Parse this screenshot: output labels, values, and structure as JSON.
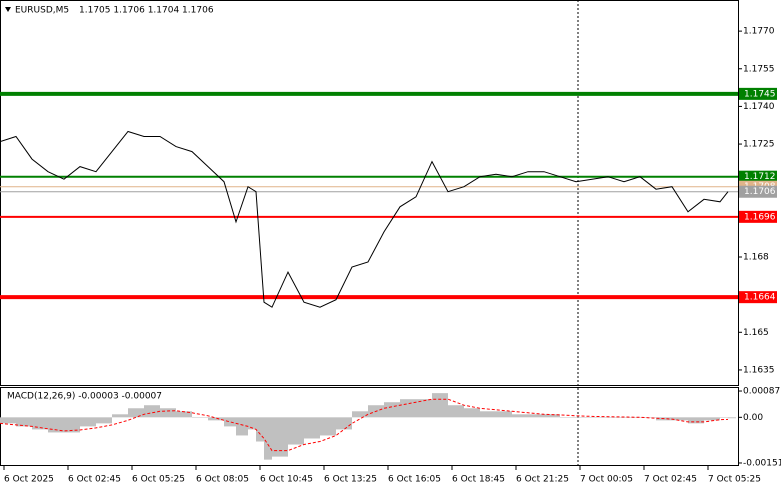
{
  "chart_data": [
    {
      "type": "line",
      "title": "EURUSD,M5",
      "subtitle": "1.1705 1.1706 1.1704 1.1706",
      "x": [
        0,
        8,
        16,
        24,
        32,
        40,
        48,
        56,
        64,
        72,
        80,
        88,
        96,
        104,
        112,
        118,
        124,
        128,
        132,
        136,
        144,
        152,
        160,
        168,
        176,
        184,
        192,
        200,
        208,
        216,
        224,
        232,
        240,
        248,
        256,
        264,
        272,
        280,
        288,
        296,
        304,
        312,
        320,
        328,
        336,
        344,
        352,
        360,
        364
      ],
      "values": [
        1.1726,
        1.1728,
        1.1719,
        1.1714,
        1.1711,
        1.1716,
        1.1714,
        1.1722,
        1.173,
        1.1728,
        1.1728,
        1.1724,
        1.1722,
        1.1716,
        1.171,
        1.1694,
        1.1708,
        1.1706,
        1.1662,
        1.166,
        1.1674,
        1.1662,
        1.166,
        1.1663,
        1.1676,
        1.1678,
        1.169,
        1.17,
        1.1704,
        1.1718,
        1.1706,
        1.1708,
        1.1712,
        1.1713,
        1.1712,
        1.1714,
        1.1714,
        1.1712,
        1.171,
        1.1711,
        1.1712,
        1.171,
        1.1712,
        1.1707,
        1.1708,
        1.1698,
        1.1703,
        1.1702,
        1.1706
      ],
      "color": "#000000",
      "xlim": [
        0,
        369
      ],
      "xticks": [
        {
          "value": 2,
          "label": "6 Oct 2025"
        },
        {
          "value": 34,
          "label": "6 Oct 02:45"
        },
        {
          "value": 66,
          "label": "6 Oct 05:25"
        },
        {
          "value": 98,
          "label": "6 Oct 08:05"
        },
        {
          "value": 130,
          "label": "6 Oct 10:45"
        },
        {
          "value": 162,
          "label": "6 Oct 13:25"
        },
        {
          "value": 194,
          "label": "6 Oct 16:05"
        },
        {
          "value": 226,
          "label": "6 Oct 18:45"
        },
        {
          "value": 258,
          "label": "6 Oct 21:25"
        },
        {
          "value": 290,
          "label": "7 Oct 00:05"
        },
        {
          "value": 322,
          "label": "7 Oct 02:45"
        },
        {
          "value": 354,
          "label": "7 Oct 05:25"
        }
      ],
      "day_separator": 289,
      "ylim": [
        1.1629,
        1.17824
      ],
      "yticks": [
        1.1635,
        1.165,
        1.168,
        {
          "value": 1.1725,
          "label": "1.1725"
        },
        {
          "value": 1.174,
          "label": "1.1740"
        },
        1.1755,
        {
          "value": 1.177,
          "label": "1.1770"
        }
      ],
      "grid": false,
      "levels": [
        {
          "value": 1.1745,
          "color": "#008000",
          "style": "thick"
        },
        {
          "value": 1.1712,
          "color": "#008000",
          "style": "medium"
        },
        {
          "value": 1.1708,
          "color": "#e0b48a",
          "style": "thin"
        },
        {
          "value": 1.1706,
          "color": "#a0a0a0",
          "style": "thin"
        },
        {
          "value": 1.1696,
          "color": "#ff0000",
          "style": "medium"
        },
        {
          "value": 1.1664,
          "color": "#ff0000",
          "style": "thick"
        }
      ]
    },
    {
      "type": "macd",
      "title": "MACD(12,26,9) -0.00003 -0.00007",
      "histogram": [
        -0.0002,
        -0.0003,
        -0.0004,
        -0.0005,
        -0.0005,
        -0.0003,
        -0.0002,
        0.0001,
        0.0003,
        0.0004,
        0.0003,
        0.0002,
        0.0,
        -0.0001,
        -0.0003,
        -0.0006,
        -0.0004,
        -0.0008,
        -0.0014,
        -0.0013,
        -0.0009,
        -0.0007,
        -0.0006,
        -0.0004,
        0.0002,
        0.0004,
        0.0005,
        0.0006,
        0.0006,
        0.0008,
        0.0004,
        0.0003,
        0.0002,
        0.0002,
        0.0001,
        0.0001,
        0.0001,
        0,
        0,
        0,
        0,
        0,
        0,
        -0.0001,
        -0.0001,
        -0.0002,
        -0.0001,
        0,
        -3e-05
      ],
      "signal": [
        -0.0002,
        -0.00025,
        -0.0003,
        -0.00038,
        -0.00045,
        -0.00042,
        -0.00035,
        -0.00025,
        -0.0001,
        0.0001,
        0.0002,
        0.00022,
        0.00015,
        5e-05,
        -0.0001,
        -0.0002,
        -0.0003,
        -0.0004,
        -0.0007,
        -0.0011,
        -0.0011,
        -0.0009,
        -0.0008,
        -0.0006,
        -0.0002,
        0.0001,
        0.0003,
        0.0004,
        0.0005,
        0.0006,
        0.0006,
        0.0004,
        0.0003,
        0.00025,
        0.0002,
        0.00015,
        0.0001,
        8e-05,
        5e-05,
        3e-05,
        2e-05,
        1e-05,
        0.0,
        -3e-05,
        -6e-05,
        -0.00015,
        -0.00015,
        -8e-05,
        -7e-05
      ],
      "histogram_color": "#c0c0c0",
      "signal_color": "#ff0000",
      "ylim": [
        -0.00161,
        0.00097
      ],
      "yticks": [
        -0.00151,
        {
          "value": 0,
          "label": "0.00"
        },
        0.00087
      ]
    }
  ]
}
